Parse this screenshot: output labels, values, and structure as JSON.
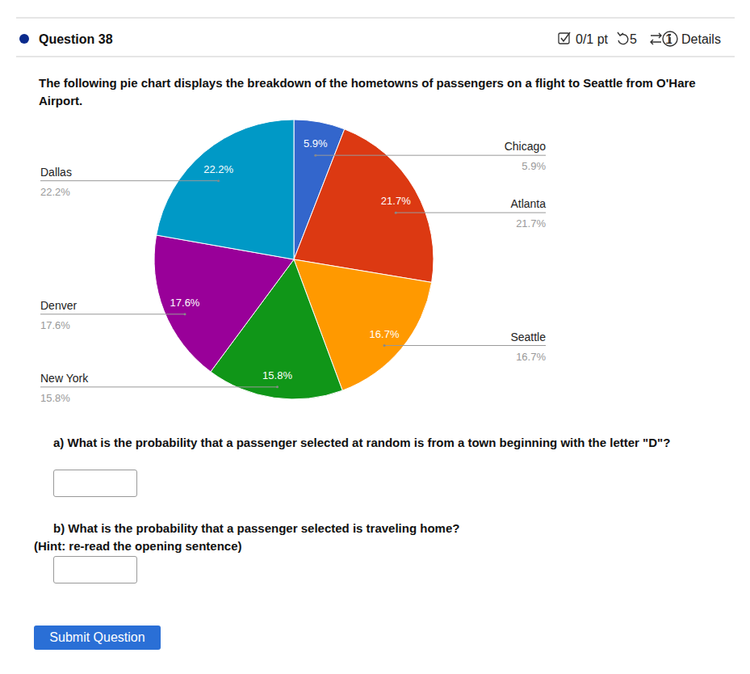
{
  "page": {
    "question": "Question 38",
    "score": "0/1 pt",
    "attempts": "5",
    "retries": "1",
    "details": "Details",
    "prompt": "The following pie chart displays the breakdown of the hometowns of passengers on a flight to Seattle from O'Hare Airport.",
    "parts": [
      {
        "text": "a) What is the probability that a passenger selected at random is from a town beginning with the letter \"D\"?"
      },
      {
        "text": "b) What is the probability that a passenger selected is traveling home?",
        "hint": "(Hint: re-read the opening sentence)"
      }
    ],
    "button": "Submit Question"
  },
  "chart_data": {
    "type": "pie",
    "categories": [
      "Chicago",
      "Atlanta",
      "Seattle",
      "New York",
      "Denver",
      "Dallas"
    ],
    "values": [
      5.9,
      21.7,
      16.7,
      15.8,
      17.6,
      22.2
    ],
    "value_labels": [
      "5.9%",
      "21.7%",
      "16.7%",
      "15.8%",
      "17.6%",
      "22.2%"
    ],
    "colors": [
      "#3366cc",
      "#dc3912",
      "#ff9900",
      "#109618",
      "#990099",
      "#0099c6"
    ],
    "data_labels": true
  }
}
